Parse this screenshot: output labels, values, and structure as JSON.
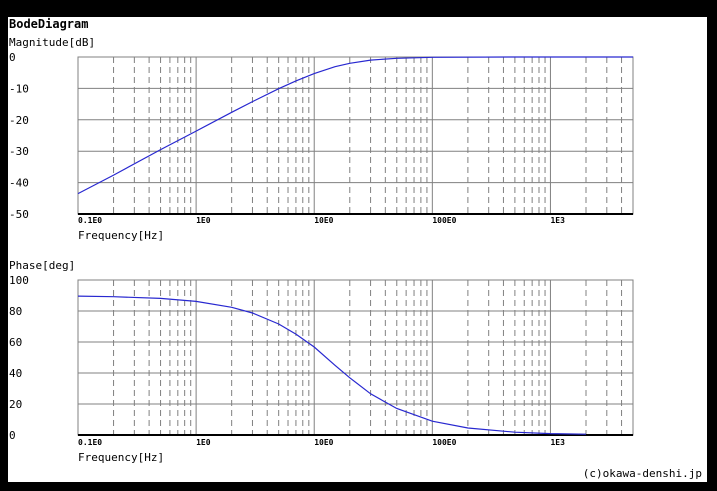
{
  "title": "BodeDiagram",
  "credit": "(c)okawa-denshi.jp",
  "colors": {
    "curve": "#2828d0",
    "grid": "#808080",
    "axis": "#000000"
  },
  "chart_data": [
    {
      "type": "line",
      "ylabel": "Magnitude[dB]",
      "xlabel": "Frequency[Hz]",
      "xscale": "log",
      "xlim": [
        0.1,
        5000
      ],
      "ylim": [
        -50,
        0
      ],
      "yticks": [
        0,
        -10,
        -20,
        -30,
        -40,
        -50
      ],
      "xticks": [
        {
          "value": 0.1,
          "label": "0.1E0"
        },
        {
          "value": 1,
          "label": "1E0"
        },
        {
          "value": 10,
          "label": "10E0"
        },
        {
          "value": 100,
          "label": "100E0"
        },
        {
          "value": 1000,
          "label": "1E3"
        }
      ],
      "grid": true,
      "series": [
        {
          "x": [
            0.1,
            0.2,
            0.5,
            1,
            2,
            3,
            5,
            7,
            10,
            15,
            20,
            30,
            50,
            100,
            500,
            1000,
            5000
          ],
          "y": [
            -43.5,
            -37.6,
            -29.5,
            -23.6,
            -17.6,
            -14.2,
            -10.1,
            -7.6,
            -5.3,
            -3.1,
            -2.0,
            -1.0,
            -0.4,
            -0.1,
            0,
            0,
            0
          ]
        }
      ]
    },
    {
      "type": "line",
      "ylabel": "Phase[deg]",
      "xlabel": "Frequency[Hz]",
      "xscale": "log",
      "xlim": [
        0.1,
        5000
      ],
      "ylim": [
        0,
        100
      ],
      "yticks": [
        100,
        80,
        60,
        40,
        20,
        0
      ],
      "xticks": [
        {
          "value": 0.1,
          "label": "0.1E0"
        },
        {
          "value": 1,
          "label": "1E0"
        },
        {
          "value": 10,
          "label": "10E0"
        },
        {
          "value": 100,
          "label": "100E0"
        },
        {
          "value": 1000,
          "label": "1E3"
        }
      ],
      "grid": true,
      "series": [
        {
          "x": [
            0.1,
            0.2,
            0.5,
            1,
            2,
            3,
            5,
            7,
            10,
            15,
            20,
            30,
            50,
            100,
            200,
            500,
            1000,
            2000
          ],
          "y": [
            89.6,
            89.2,
            88.1,
            86.2,
            82.4,
            78.7,
            71.6,
            65.1,
            56.8,
            45.0,
            36.9,
            26.6,
            17.1,
            8.9,
            4.5,
            1.8,
            0.9,
            0.5
          ]
        }
      ]
    }
  ]
}
